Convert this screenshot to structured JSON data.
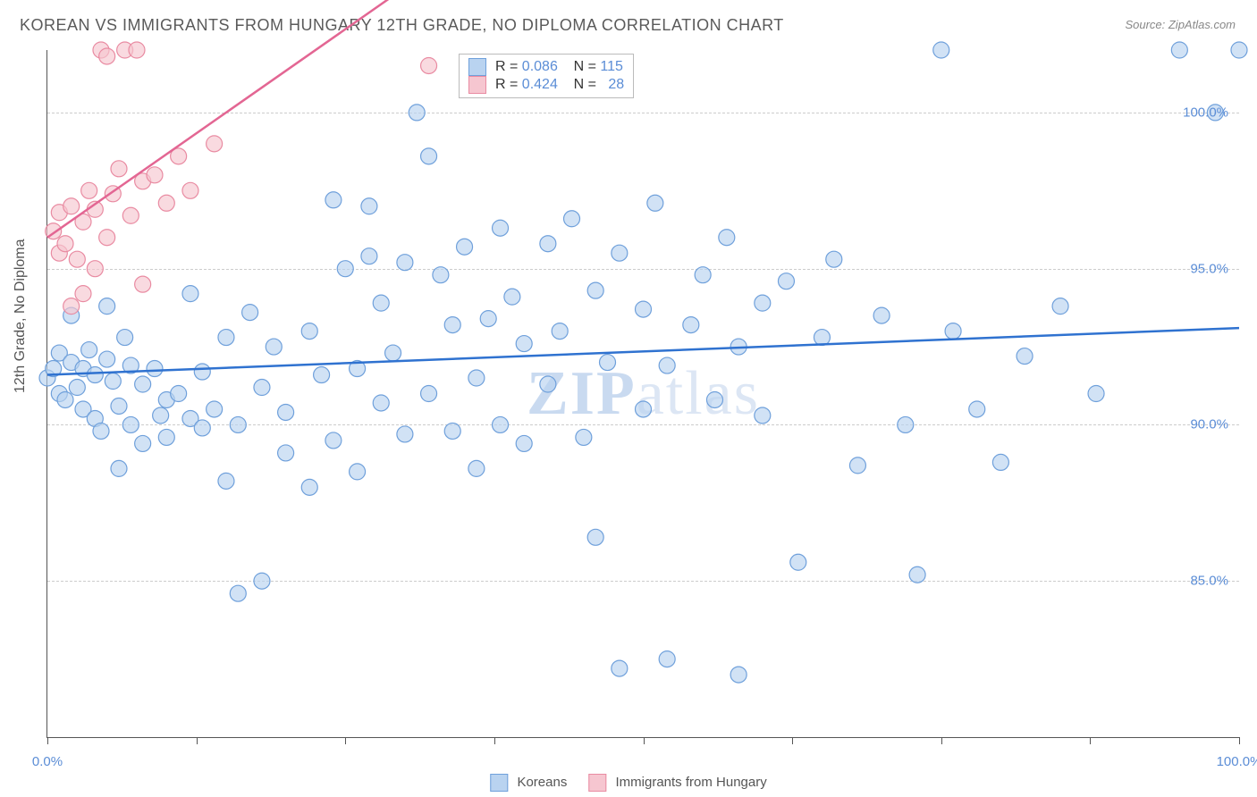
{
  "title": "KOREAN VS IMMIGRANTS FROM HUNGARY 12TH GRADE, NO DIPLOMA CORRELATION CHART",
  "source": "Source: ZipAtlas.com",
  "ylabel": "12th Grade, No Diploma",
  "watermark_a": "ZIP",
  "watermark_b": "atlas",
  "chart": {
    "type": "scatter",
    "background_color": "#ffffff",
    "grid_color": "#cccccc",
    "axis_color": "#555555",
    "tick_label_color": "#5b8dd6",
    "xlim": [
      0,
      100
    ],
    "ylim": [
      80,
      102
    ],
    "ytick_values": [
      85,
      90,
      95,
      100
    ],
    "ytick_labels": [
      "85.0%",
      "90.0%",
      "95.0%",
      "100.0%"
    ],
    "xtick_values": [
      0,
      12.5,
      25,
      37.5,
      50,
      62.5,
      75,
      87.5,
      100
    ],
    "xaxis_end_labels": {
      "left": "0.0%",
      "right": "100.0%"
    },
    "marker_radius": 9,
    "marker_stroke_width": 1.2,
    "trend_line_width": 2.5,
    "series": [
      {
        "name": "Koreans",
        "fill": "#b9d3f0",
        "stroke": "#6fa0db",
        "fill_opacity": 0.65,
        "R": "0.086",
        "N": "115",
        "trend": {
          "y_at_x0": 91.6,
          "y_at_x100": 93.1,
          "color": "#2f72d0"
        },
        "points": [
          [
            0,
            91.5
          ],
          [
            0.5,
            91.8
          ],
          [
            1,
            92.3
          ],
          [
            1,
            91.0
          ],
          [
            1.5,
            90.8
          ],
          [
            2,
            93.5
          ],
          [
            2,
            92.0
          ],
          [
            2.5,
            91.2
          ],
          [
            3,
            91.8
          ],
          [
            3,
            90.5
          ],
          [
            3.5,
            92.4
          ],
          [
            4,
            91.6
          ],
          [
            4,
            90.2
          ],
          [
            4.5,
            89.8
          ],
          [
            5,
            93.8
          ],
          [
            5,
            92.1
          ],
          [
            5.5,
            91.4
          ],
          [
            6,
            90.6
          ],
          [
            6,
            88.6
          ],
          [
            6.5,
            92.8
          ],
          [
            7,
            91.9
          ],
          [
            7,
            90.0
          ],
          [
            8,
            91.3
          ],
          [
            8,
            89.4
          ],
          [
            9,
            91.8
          ],
          [
            9.5,
            90.3
          ],
          [
            10,
            90.8
          ],
          [
            10,
            89.6
          ],
          [
            11,
            91.0
          ],
          [
            12,
            94.2
          ],
          [
            12,
            90.2
          ],
          [
            13,
            91.7
          ],
          [
            13,
            89.9
          ],
          [
            14,
            90.5
          ],
          [
            15,
            92.8
          ],
          [
            15,
            88.2
          ],
          [
            16,
            90.0
          ],
          [
            16,
            84.6
          ],
          [
            17,
            93.6
          ],
          [
            18,
            91.2
          ],
          [
            18,
            85.0
          ],
          [
            19,
            92.5
          ],
          [
            20,
            90.4
          ],
          [
            20,
            89.1
          ],
          [
            22,
            93.0
          ],
          [
            22,
            88.0
          ],
          [
            23,
            91.6
          ],
          [
            24,
            97.2
          ],
          [
            24,
            89.5
          ],
          [
            25,
            95.0
          ],
          [
            26,
            91.8
          ],
          [
            26,
            88.5
          ],
          [
            27,
            97.0
          ],
          [
            27,
            95.4
          ],
          [
            28,
            93.9
          ],
          [
            28,
            90.7
          ],
          [
            29,
            92.3
          ],
          [
            30,
            95.2
          ],
          [
            30,
            89.7
          ],
          [
            31,
            100.0
          ],
          [
            32,
            98.6
          ],
          [
            32,
            91.0
          ],
          [
            33,
            94.8
          ],
          [
            34,
            93.2
          ],
          [
            34,
            89.8
          ],
          [
            35,
            95.7
          ],
          [
            36,
            91.5
          ],
          [
            36,
            88.6
          ],
          [
            37,
            93.4
          ],
          [
            38,
            96.3
          ],
          [
            38,
            90.0
          ],
          [
            39,
            94.1
          ],
          [
            40,
            92.6
          ],
          [
            40,
            89.4
          ],
          [
            42,
            95.8
          ],
          [
            42,
            91.3
          ],
          [
            43,
            93.0
          ],
          [
            44,
            96.6
          ],
          [
            45,
            89.6
          ],
          [
            46,
            94.3
          ],
          [
            46,
            86.4
          ],
          [
            47,
            92.0
          ],
          [
            48,
            95.5
          ],
          [
            48,
            82.2
          ],
          [
            50,
            93.7
          ],
          [
            50,
            90.5
          ],
          [
            51,
            97.1
          ],
          [
            52,
            91.9
          ],
          [
            52,
            82.5
          ],
          [
            54,
            93.2
          ],
          [
            55,
            94.8
          ],
          [
            56,
            90.8
          ],
          [
            57,
            96.0
          ],
          [
            58,
            92.5
          ],
          [
            58,
            82.0
          ],
          [
            60,
            93.9
          ],
          [
            60,
            90.3
          ],
          [
            62,
            94.6
          ],
          [
            63,
            85.6
          ],
          [
            65,
            92.8
          ],
          [
            66,
            95.3
          ],
          [
            68,
            88.7
          ],
          [
            70,
            93.5
          ],
          [
            72,
            90.0
          ],
          [
            73,
            85.2
          ],
          [
            75,
            102.0
          ],
          [
            76,
            93.0
          ],
          [
            78,
            90.5
          ],
          [
            80,
            88.8
          ],
          [
            82,
            92.2
          ],
          [
            85,
            93.8
          ],
          [
            88,
            91.0
          ],
          [
            95,
            102.0
          ],
          [
            98,
            100.0
          ],
          [
            100,
            102.0
          ]
        ]
      },
      {
        "name": "Immigrants from Hungary",
        "fill": "#f6c6d0",
        "stroke": "#e98ba2",
        "fill_opacity": 0.65,
        "R": "0.424",
        "N": "28",
        "trend": {
          "y_at_x0": 96.0,
          "y_at_x30": 104.0,
          "color": "#e36693"
        },
        "points": [
          [
            0.5,
            96.2
          ],
          [
            1,
            95.5
          ],
          [
            1,
            96.8
          ],
          [
            1.5,
            95.8
          ],
          [
            2,
            97.0
          ],
          [
            2,
            93.8
          ],
          [
            2.5,
            95.3
          ],
          [
            3,
            96.5
          ],
          [
            3,
            94.2
          ],
          [
            3.5,
            97.5
          ],
          [
            4,
            95.0
          ],
          [
            4,
            96.9
          ],
          [
            4.5,
            102.0
          ],
          [
            5,
            96.0
          ],
          [
            5,
            101.8
          ],
          [
            5.5,
            97.4
          ],
          [
            6,
            98.2
          ],
          [
            6.5,
            102.0
          ],
          [
            7,
            96.7
          ],
          [
            7.5,
            102.0
          ],
          [
            8,
            97.8
          ],
          [
            8,
            94.5
          ],
          [
            9,
            98.0
          ],
          [
            10,
            97.1
          ],
          [
            11,
            98.6
          ],
          [
            12,
            97.5
          ],
          [
            14,
            99.0
          ],
          [
            32,
            101.5
          ]
        ]
      }
    ]
  },
  "stat_legend": {
    "r_label": "R =",
    "n_label": "N ="
  },
  "bottom_legend": {
    "series1": "Koreans",
    "series2": "Immigrants from Hungary"
  }
}
